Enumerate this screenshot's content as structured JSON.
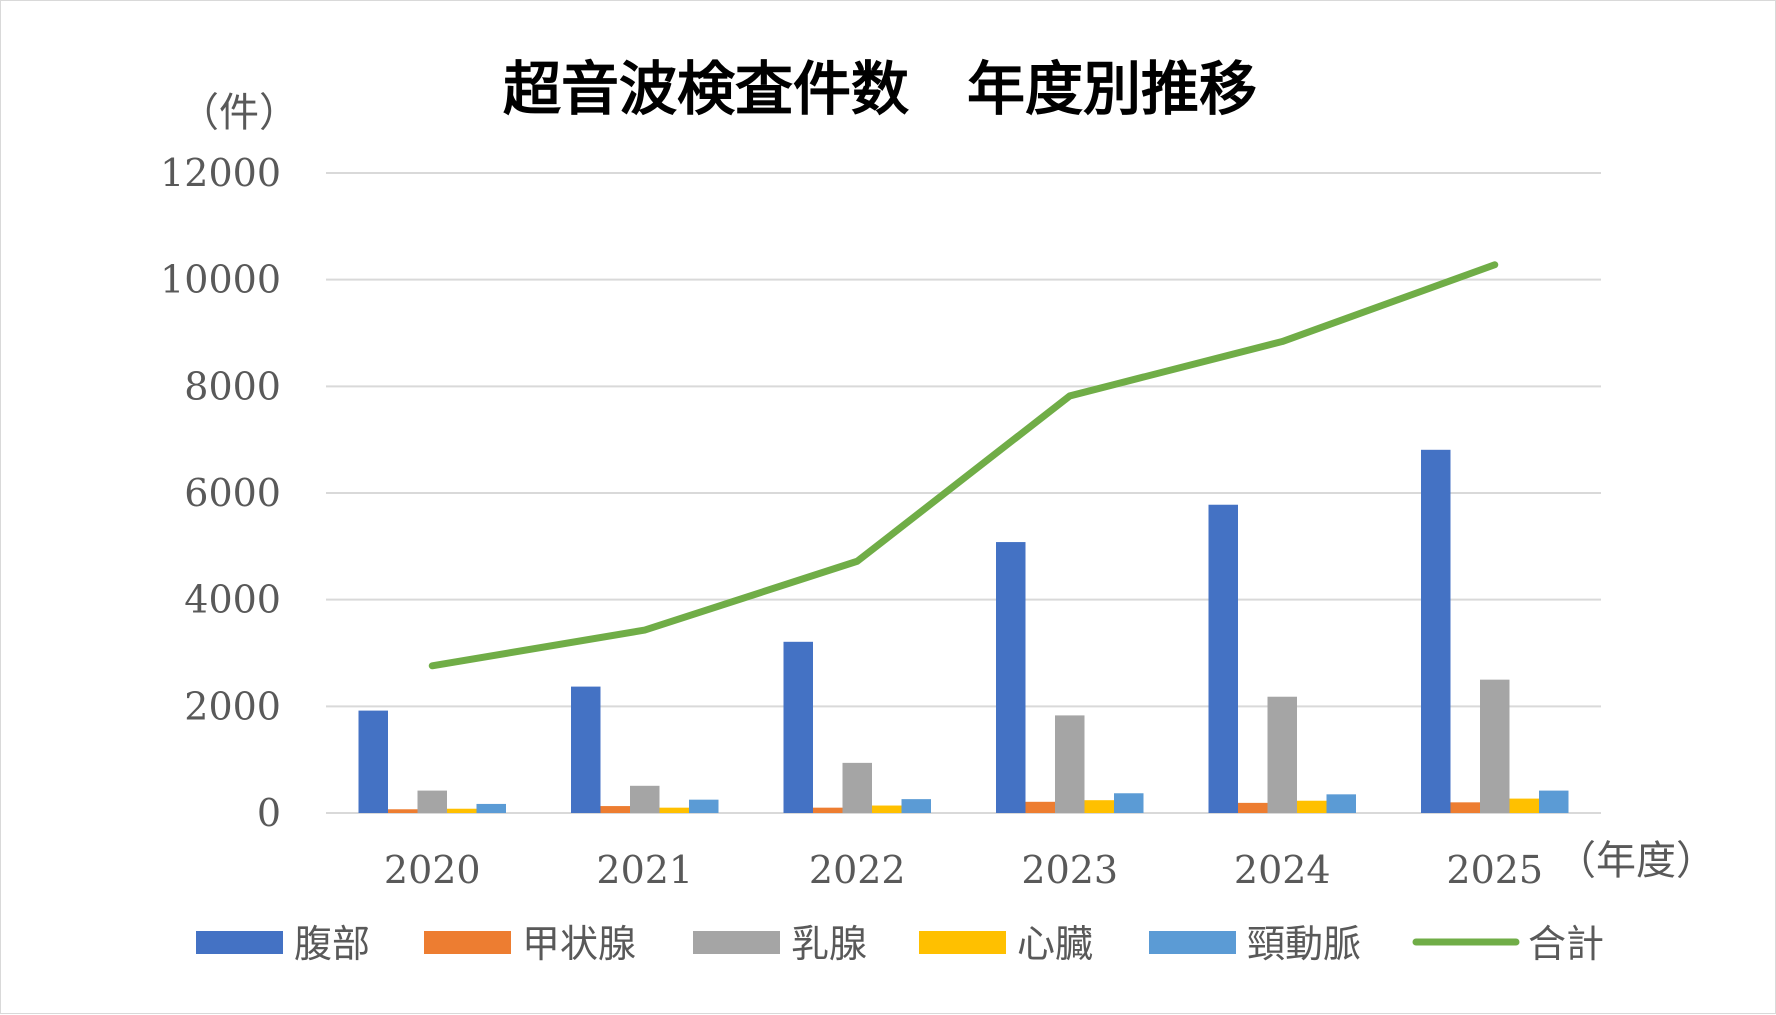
{
  "chart_data": {
    "type": "bar",
    "title": "超音波検査件数　年度別推移",
    "ylabel": "（件）",
    "xlabel": "（年度）",
    "categories": [
      "2020",
      "2021",
      "2022",
      "2023",
      "2024",
      "2025"
    ],
    "ylim": [
      0,
      12000
    ],
    "yticks": [
      "0",
      "2000",
      "4000",
      "6000",
      "8000",
      "10000",
      "12000"
    ],
    "grid": true,
    "legend_position": "bottom",
    "series": [
      {
        "name": "腹部",
        "kind": "bar",
        "color": "#4472C4",
        "values": [
          1920,
          2370,
          3210,
          5080,
          5780,
          6810
        ]
      },
      {
        "name": "甲状腺",
        "kind": "bar",
        "color": "#ED7D31",
        "values": [
          70,
          130,
          100,
          210,
          190,
          200
        ]
      },
      {
        "name": "乳腺",
        "kind": "bar",
        "color": "#A5A5A5",
        "values": [
          420,
          510,
          940,
          1830,
          2180,
          2500
        ]
      },
      {
        "name": "心臓",
        "kind": "bar",
        "color": "#FFC000",
        "values": [
          80,
          100,
          140,
          240,
          230,
          270
        ]
      },
      {
        "name": "頸動脈",
        "kind": "bar",
        "color": "#5B9BD5",
        "values": [
          170,
          250,
          260,
          370,
          350,
          420
        ]
      },
      {
        "name": "合計",
        "kind": "line",
        "color": "#70AD47",
        "values": [
          2760,
          3430,
          4720,
          7820,
          8840,
          10280
        ]
      }
    ]
  }
}
